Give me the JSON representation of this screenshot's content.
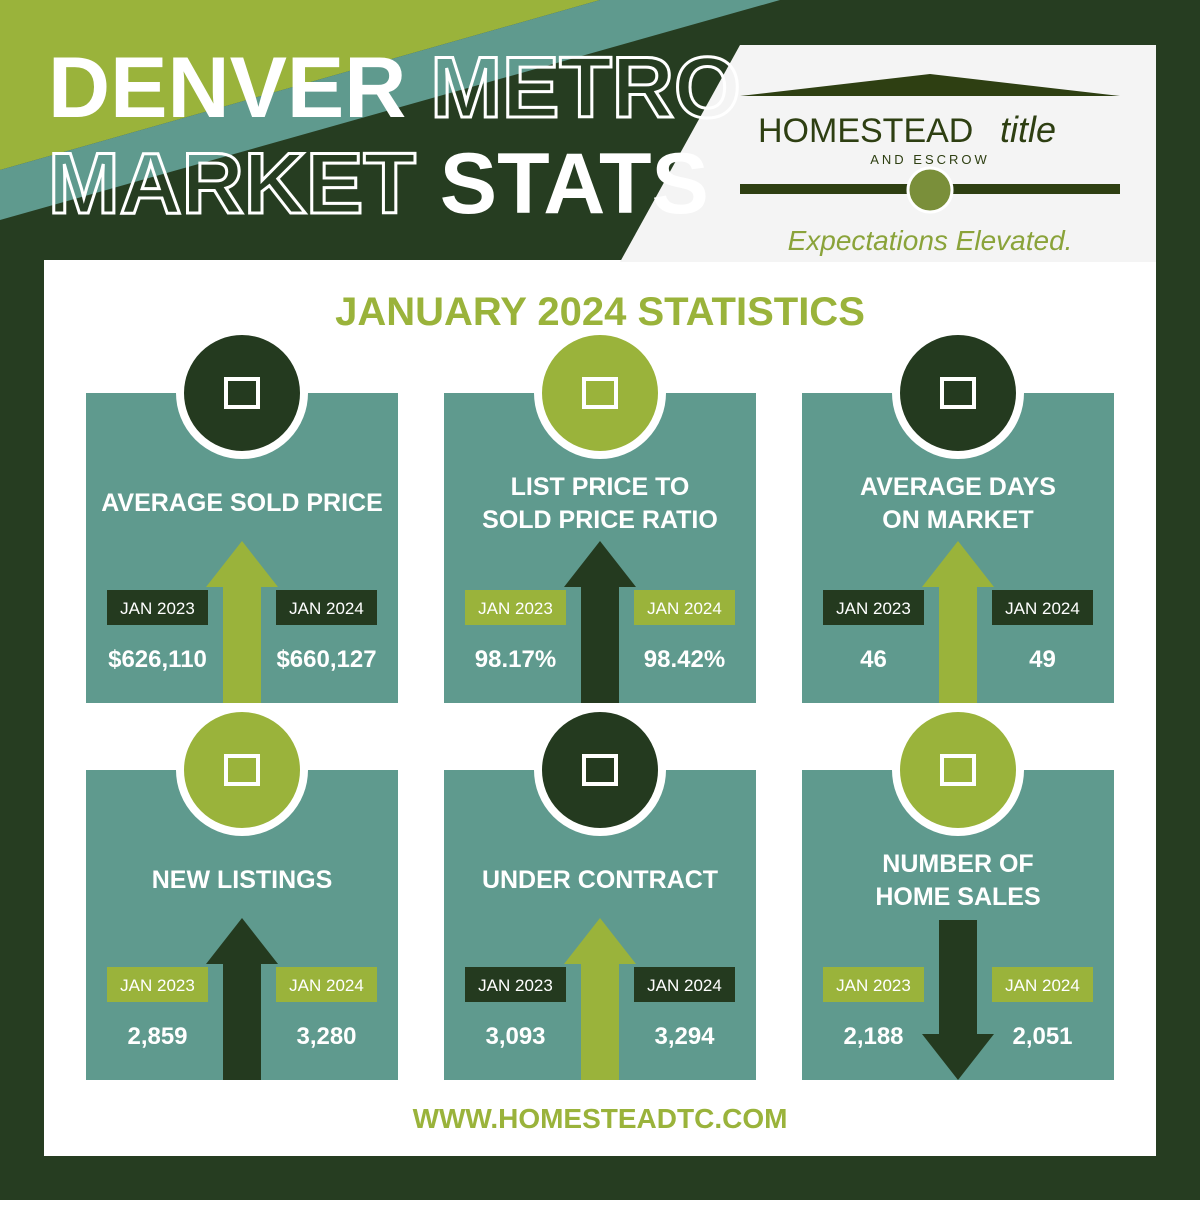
{
  "header": {
    "title_words": [
      "DENVER",
      "METRO",
      "MARKET",
      "STATS"
    ]
  },
  "logo": {
    "name": "HOMESTEAD",
    "name_script": "title",
    "subname": "AND ESCROW",
    "tagline": "Expectations Elevated."
  },
  "heading": "JANUARY 2024 STATISTICS",
  "cards": [
    {
      "title": [
        "AVERAGE SOLD PRICE"
      ],
      "labels": [
        "JAN 2023",
        "JAN 2024"
      ],
      "values": [
        "$626,110",
        "$660,127"
      ],
      "arrow": "up",
      "arrow_color": "#9ab33b",
      "label_color": "#243a1f",
      "icon_color": "#243a1f"
    },
    {
      "title": [
        "LIST PRICE TO",
        "SOLD PRICE RATIO"
      ],
      "labels": [
        "JAN 2023",
        "JAN 2024"
      ],
      "values": [
        "98.17%",
        "98.42%"
      ],
      "arrow": "up",
      "arrow_color": "#243a1f",
      "label_color": "#9ab33b",
      "icon_color": "#9ab33b"
    },
    {
      "title": [
        "AVERAGE DAYS",
        "ON MARKET"
      ],
      "labels": [
        "JAN 2023",
        "JAN 2024"
      ],
      "values": [
        "46",
        "49"
      ],
      "arrow": "up",
      "arrow_color": "#9ab33b",
      "label_color": "#243a1f",
      "icon_color": "#243a1f"
    },
    {
      "title": [
        "NEW LISTINGS"
      ],
      "labels": [
        "JAN 2023",
        "JAN 2024"
      ],
      "values": [
        "2,859",
        "3,280"
      ],
      "arrow": "up",
      "arrow_color": "#243a1f",
      "label_color": "#9ab33b",
      "icon_color": "#9ab33b"
    },
    {
      "title": [
        "UNDER CONTRACT"
      ],
      "labels": [
        "JAN 2023",
        "JAN 2024"
      ],
      "values": [
        "3,093",
        "3,294"
      ],
      "arrow": "up",
      "arrow_color": "#9ab33b",
      "label_color": "#243a1f",
      "icon_color": "#243a1f"
    },
    {
      "title": [
        "NUMBER OF",
        "HOME SALES"
      ],
      "labels": [
        "JAN 2023",
        "JAN 2024"
      ],
      "values": [
        "2,188",
        "2,051"
      ],
      "arrow": "down",
      "arrow_color": "#243a1f",
      "label_color": "#9ab33b",
      "icon_color": "#9ab33b"
    }
  ],
  "footer": "WWW.HOMESTEADTC.COM"
}
